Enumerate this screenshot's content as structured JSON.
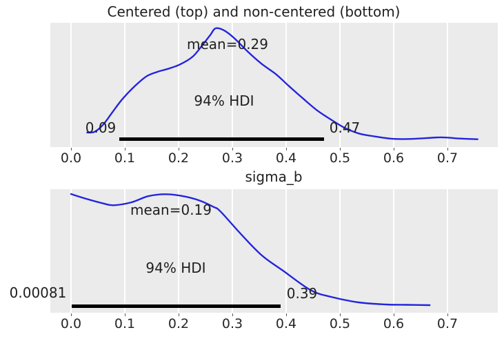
{
  "title": "Centered (top) and non-centered (bottom)",
  "colors": {
    "curve": "#2424dd",
    "plot_bg": "#ebebeb",
    "gridline": "#ffffff",
    "hdi_bar": "#000000",
    "text": "#1f1f1f",
    "tick_text": "#262626"
  },
  "chart_data": [
    {
      "type": "line",
      "subplot": "top",
      "variable": "sigma_b",
      "mean": 0.29,
      "mean_label": "mean=0.29",
      "hdi_text": "94% HDI",
      "hdi": {
        "probability": "94%",
        "lower": 0.09,
        "upper": 0.47,
        "lower_label": "0.09",
        "upper_label": "0.47"
      },
      "xlim": [
        -0.03846,
        0.7936
      ],
      "xtick_values": [
        0.0,
        0.1,
        0.2,
        0.3,
        0.4,
        0.5,
        0.6,
        0.7
      ],
      "xtick_labels": [
        "0.0",
        "0.1",
        "0.2",
        "0.3",
        "0.4",
        "0.5",
        "0.6",
        "0.7"
      ],
      "grid": "vertical-white",
      "legend": "none",
      "curve_x": [
        0.03,
        0.044,
        0.06,
        0.077,
        0.096,
        0.118,
        0.14,
        0.16,
        0.182,
        0.204,
        0.227,
        0.246,
        0.259,
        0.269,
        0.285,
        0.304,
        0.329,
        0.355,
        0.381,
        0.406,
        0.432,
        0.458,
        0.483,
        0.509,
        0.535,
        0.56,
        0.599,
        0.637,
        0.688,
        0.72,
        0.756
      ],
      "curve_density": [
        0.068,
        0.075,
        0.14,
        0.25,
        0.37,
        0.48,
        0.57,
        0.61,
        0.64,
        0.68,
        0.75,
        0.86,
        0.94,
        1.0,
        0.98,
        0.91,
        0.79,
        0.68,
        0.59,
        0.48,
        0.37,
        0.265,
        0.185,
        0.11,
        0.06,
        0.037,
        0.012,
        0.012,
        0.025,
        0.015,
        0.008
      ]
    },
    {
      "type": "line",
      "subplot": "bottom",
      "variable": "sigma_b",
      "axis_title": "sigma_b",
      "mean": 0.19,
      "mean_label": "mean=0.19",
      "hdi_text": "94% HDI",
      "hdi": {
        "probability": "94%",
        "lower": 0.00081,
        "upper": 0.39,
        "lower_label": "0.00081",
        "upper_label": "0.39"
      },
      "xlim": [
        -0.03846,
        0.7936
      ],
      "xtick_values": [
        0.0,
        0.1,
        0.2,
        0.3,
        0.4,
        0.5,
        0.6,
        0.7
      ],
      "xtick_labels": [
        "0.0",
        "0.1",
        "0.2",
        "0.3",
        "0.4",
        "0.5",
        "0.6",
        "0.7"
      ],
      "grid": "vertical-white",
      "legend": "none",
      "curve_x": [
        0.0,
        0.028,
        0.06,
        0.079,
        0.112,
        0.144,
        0.176,
        0.208,
        0.24,
        0.265,
        0.278,
        0.317,
        0.355,
        0.394,
        0.445,
        0.483,
        0.535,
        0.586,
        0.624,
        0.667
      ],
      "curve_density": [
        1.0,
        0.957,
        0.915,
        0.899,
        0.925,
        0.981,
        0.998,
        0.981,
        0.94,
        0.884,
        0.843,
        0.634,
        0.447,
        0.311,
        0.137,
        0.075,
        0.025,
        0.006,
        0.003,
        0.0
      ]
    }
  ]
}
